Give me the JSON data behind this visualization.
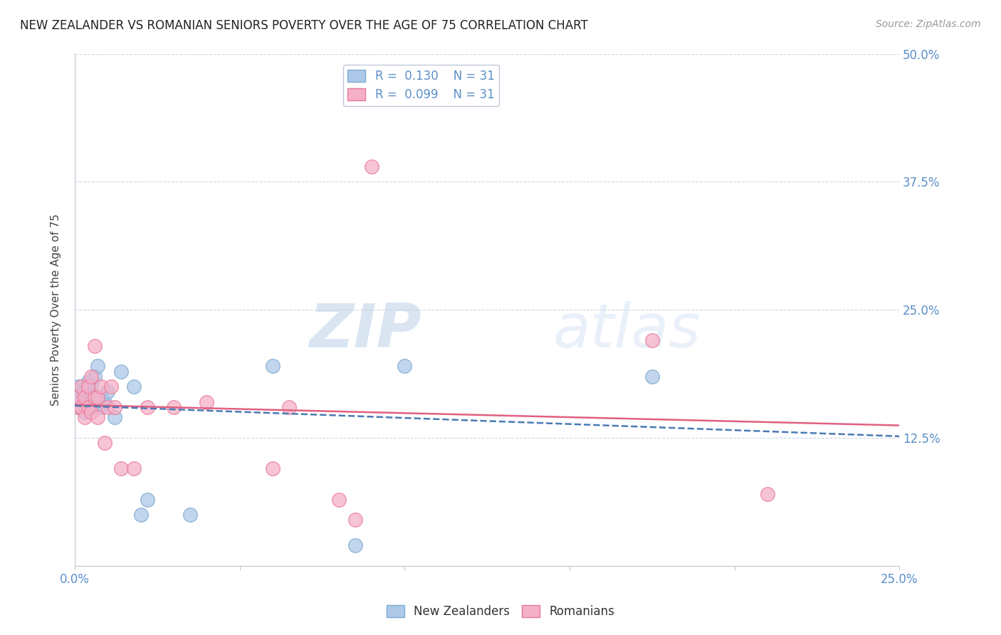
{
  "title": "NEW ZEALANDER VS ROMANIAN SENIORS POVERTY OVER THE AGE OF 75 CORRELATION CHART",
  "source_text": "Source: ZipAtlas.com",
  "ylabel": "Seniors Poverty Over the Age of 75",
  "xlim": [
    0.0,
    0.25
  ],
  "ylim": [
    0.0,
    0.5
  ],
  "xticks": [
    0.0,
    0.05,
    0.1,
    0.15,
    0.2,
    0.25
  ],
  "yticks": [
    0.0,
    0.125,
    0.25,
    0.375,
    0.5
  ],
  "xticklabels": [
    "0.0%",
    "",
    "",
    "",
    "",
    "25.0%"
  ],
  "yticklabels_right": [
    "",
    "12.5%",
    "25.0%",
    "37.5%",
    "50.0%"
  ],
  "nz_R": "0.130",
  "nz_N": "31",
  "ro_R": "0.099",
  "ro_N": "31",
  "nz_color": "#adc8e8",
  "ro_color": "#f5b0c8",
  "nz_edge_color": "#7aaad0",
  "ro_edge_color": "#e87898",
  "nz_line_color": "#4a7ab5",
  "ro_line_color": "#e06080",
  "label_color": "#5b8fc9",
  "watermark_zip": "ZIP",
  "watermark_atlas": "atlas",
  "background_color": "#ffffff",
  "nz_x": [
    0.001,
    0.001,
    0.001,
    0.002,
    0.002,
    0.002,
    0.003,
    0.003,
    0.003,
    0.004,
    0.004,
    0.005,
    0.005,
    0.005,
    0.006,
    0.006,
    0.007,
    0.008,
    0.008,
    0.009,
    0.01,
    0.012,
    0.014,
    0.018,
    0.02,
    0.022,
    0.035,
    0.06,
    0.085,
    0.1,
    0.175
  ],
  "nz_y": [
    0.155,
    0.16,
    0.175,
    0.155,
    0.165,
    0.17,
    0.16,
    0.15,
    0.17,
    0.175,
    0.18,
    0.155,
    0.165,
    0.175,
    0.165,
    0.185,
    0.195,
    0.155,
    0.165,
    0.16,
    0.17,
    0.145,
    0.19,
    0.175,
    0.05,
    0.065,
    0.05,
    0.195,
    0.02,
    0.195,
    0.185
  ],
  "ro_x": [
    0.001,
    0.001,
    0.002,
    0.002,
    0.003,
    0.003,
    0.004,
    0.004,
    0.005,
    0.005,
    0.006,
    0.006,
    0.007,
    0.007,
    0.008,
    0.009,
    0.01,
    0.011,
    0.012,
    0.014,
    0.018,
    0.022,
    0.03,
    0.04,
    0.06,
    0.065,
    0.08,
    0.085,
    0.09,
    0.175,
    0.21
  ],
  "ro_y": [
    0.155,
    0.165,
    0.155,
    0.175,
    0.145,
    0.165,
    0.155,
    0.175,
    0.15,
    0.185,
    0.165,
    0.215,
    0.145,
    0.165,
    0.175,
    0.12,
    0.155,
    0.175,
    0.155,
    0.095,
    0.095,
    0.155,
    0.155,
    0.16,
    0.095,
    0.155,
    0.065,
    0.045,
    0.39,
    0.22,
    0.07
  ]
}
